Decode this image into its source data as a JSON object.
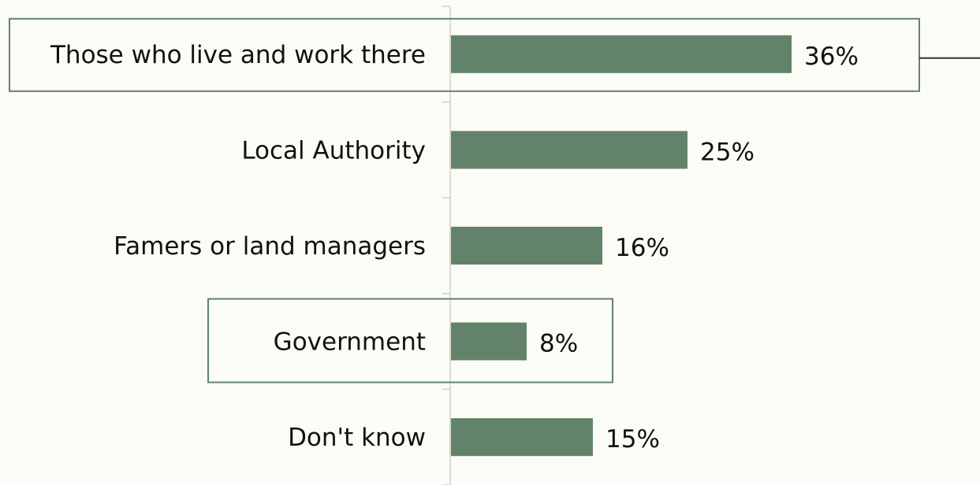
{
  "chart_data": {
    "type": "bar",
    "orientation": "horizontal",
    "categories": [
      "Those who live and work there",
      "Local Authority",
      "Famers or land managers",
      "Government",
      "Don't know"
    ],
    "values": [
      36,
      25,
      16,
      8,
      15
    ],
    "value_labels": [
      "36%",
      "25%",
      "16%",
      "8%",
      "15%"
    ],
    "unit": "%",
    "highlighted_categories": [
      "Those who live and work there",
      "Government"
    ],
    "xlim": [
      0,
      55
    ],
    "grid": false,
    "legend": "none"
  },
  "colors": {
    "bar": "#62836a",
    "highlight_border": "#62836a",
    "axis": "#d0d0cc",
    "background": "#fcfcf7",
    "text": "#111111"
  }
}
